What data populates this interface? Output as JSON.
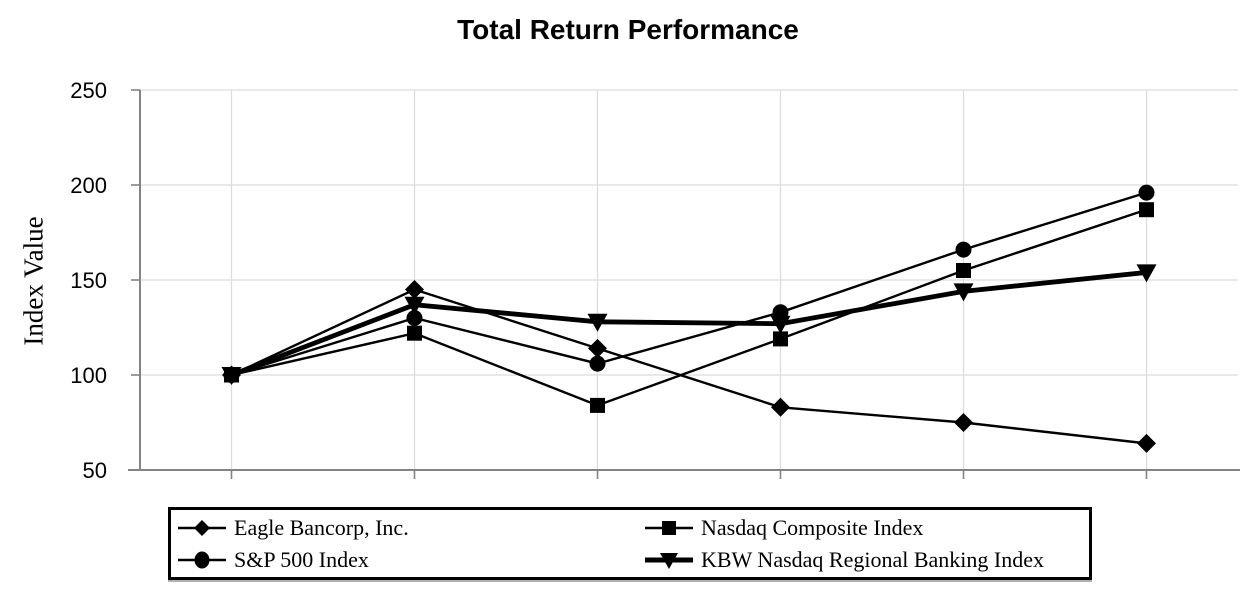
{
  "chart_data": {
    "type": "line",
    "title": "Total Return Performance",
    "ylabel": "Index Value",
    "xlabel": "",
    "ylim": [
      50,
      250
    ],
    "yticks": [
      50,
      100,
      150,
      200,
      250
    ],
    "n_points": 6,
    "x_tick_labels_visible": false,
    "grid": true,
    "legend_position": "bottom-boxed",
    "colors": {
      "series": "#000000",
      "grid": "#dcdcdc",
      "axis": "#848484",
      "text": "#000000",
      "background": "#ffffff"
    },
    "series": [
      {
        "name": "Eagle Bancorp, Inc.",
        "marker": "diamond",
        "line_width": "normal",
        "values": [
          100,
          145,
          114,
          83,
          75,
          64
        ]
      },
      {
        "name": "Nasdaq Composite Index",
        "marker": "square",
        "line_width": "normal",
        "values": [
          100,
          122,
          84,
          119,
          155,
          187
        ]
      },
      {
        "name": "S&P 500 Index",
        "marker": "circle",
        "line_width": "normal",
        "values": [
          100,
          130,
          106,
          133,
          166,
          196
        ]
      },
      {
        "name": "KBW Nasdaq Regional Banking Index",
        "marker": "triangle-down",
        "line_width": "thick",
        "values": [
          100,
          137,
          128,
          127,
          144,
          154
        ]
      }
    ]
  }
}
